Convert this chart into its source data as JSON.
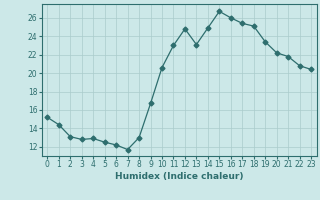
{
  "x": [
    0,
    1,
    2,
    3,
    4,
    5,
    6,
    7,
    8,
    9,
    10,
    11,
    12,
    13,
    14,
    15,
    16,
    17,
    18,
    19,
    20,
    21,
    22,
    23
  ],
  "y": [
    15.2,
    14.4,
    13.1,
    12.8,
    12.9,
    12.5,
    12.2,
    11.7,
    13.0,
    16.7,
    20.6,
    23.0,
    24.8,
    23.1,
    24.9,
    26.7,
    26.0,
    25.4,
    25.1,
    23.4,
    22.2,
    21.8,
    20.8,
    20.4
  ],
  "line_color": "#2e6e6e",
  "marker": "D",
  "marker_size": 2.5,
  "bg_color": "#cce8e8",
  "grid_color": "#aacccc",
  "xlabel": "Humidex (Indice chaleur)",
  "xlim": [
    -0.5,
    23.5
  ],
  "ylim": [
    11,
    27.5
  ],
  "yticks": [
    12,
    14,
    16,
    18,
    20,
    22,
    24,
    26
  ],
  "xticks": [
    0,
    1,
    2,
    3,
    4,
    5,
    6,
    7,
    8,
    9,
    10,
    11,
    12,
    13,
    14,
    15,
    16,
    17,
    18,
    19,
    20,
    21,
    22,
    23
  ],
  "label_fontsize": 6.5,
  "tick_fontsize": 5.5
}
